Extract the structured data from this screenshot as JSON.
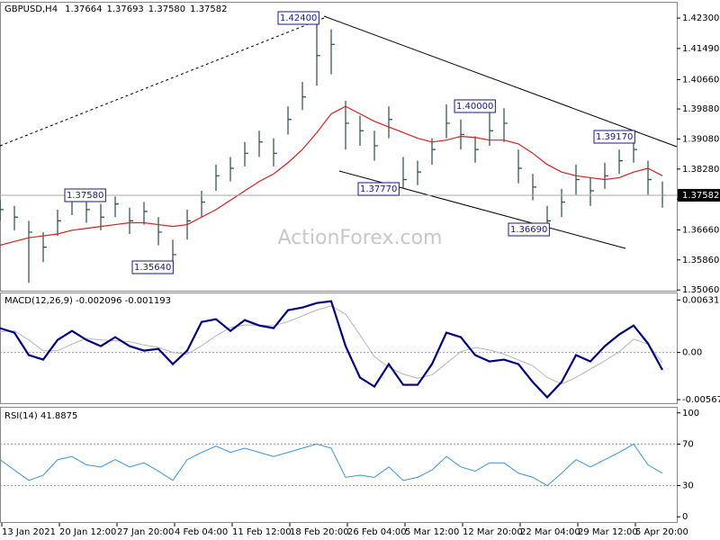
{
  "header": {
    "info": [
      "GBPUSD,H4",
      "1.37664",
      "1.37693",
      "1.37580",
      "1.37582"
    ],
    "watermark": "ActionForex.com"
  },
  "annotations": [
    "1.42400",
    "1.37580",
    "1.35640",
    "1.37770",
    "1.40000",
    "1.36690",
    "1.39170"
  ],
  "chart_data": [
    {
      "type": "hlc",
      "last_price": 1.37582,
      "color": "#2f4a4a",
      "ma_color": "#d42020",
      "x": [
        0,
        8,
        16,
        24,
        32,
        40,
        48,
        56,
        64,
        72,
        80,
        88,
        96,
        104,
        112,
        120,
        128,
        136,
        144,
        152,
        160,
        168,
        176,
        184,
        192,
        200,
        208,
        216,
        224,
        232,
        240,
        248,
        256,
        264,
        272,
        280,
        288,
        296,
        304,
        312,
        320,
        328,
        336,
        344,
        352,
        360,
        368
      ],
      "xlim": [
        0,
        376
      ],
      "high": [
        1.3745,
        1.373,
        1.369,
        1.366,
        1.372,
        1.3758,
        1.375,
        1.3735,
        1.3755,
        1.3725,
        1.374,
        1.37,
        1.364,
        1.372,
        1.377,
        1.384,
        1.386,
        1.39,
        1.393,
        1.391,
        1.3995,
        1.406,
        1.424,
        1.42,
        1.401,
        1.397,
        1.393,
        1.3995,
        1.386,
        1.385,
        1.391,
        1.4,
        1.396,
        1.3915,
        1.398,
        1.399,
        1.388,
        1.3815,
        1.373,
        1.3775,
        1.384,
        1.3805,
        1.3845,
        1.388,
        1.3917,
        1.385,
        1.3795
      ],
      "low": [
        1.369,
        1.3665,
        1.3525,
        1.358,
        1.365,
        1.3705,
        1.3685,
        1.3665,
        1.37,
        1.3655,
        1.368,
        1.3625,
        1.3564,
        1.364,
        1.37,
        1.377,
        1.3795,
        1.3835,
        1.386,
        1.3835,
        1.392,
        1.3985,
        1.405,
        1.408,
        1.388,
        1.389,
        1.385,
        1.391,
        1.3777,
        1.3785,
        1.384,
        1.391,
        1.388,
        1.3845,
        1.389,
        1.39,
        1.379,
        1.3745,
        1.3669,
        1.37,
        1.376,
        1.373,
        1.3775,
        1.3815,
        1.3845,
        1.376,
        1.3725
      ],
      "close": [
        1.372,
        1.37,
        1.366,
        1.362,
        1.369,
        1.3745,
        1.372,
        1.37,
        1.3735,
        1.369,
        1.3715,
        1.366,
        1.36,
        1.369,
        1.374,
        1.381,
        1.383,
        1.387,
        1.39,
        1.387,
        1.396,
        1.402,
        1.413,
        1.416,
        1.395,
        1.393,
        1.389,
        1.396,
        1.38,
        1.382,
        1.388,
        1.395,
        1.392,
        1.388,
        1.393,
        1.395,
        1.383,
        1.378,
        1.369,
        1.374,
        1.38,
        1.377,
        1.381,
        1.385,
        1.388,
        1.38,
        1.3758
      ],
      "ma_values": [
        1.3625,
        1.3635,
        1.3645,
        1.365,
        1.3655,
        1.3665,
        1.367,
        1.3675,
        1.368,
        1.3685,
        1.3685,
        1.368,
        1.3675,
        1.368,
        1.37,
        1.372,
        1.3745,
        1.377,
        1.3795,
        1.3815,
        1.3845,
        1.388,
        1.3925,
        1.3975,
        1.3995,
        1.3975,
        1.3955,
        1.394,
        1.3925,
        1.391,
        1.39,
        1.3905,
        1.3915,
        1.3912,
        1.3905,
        1.3905,
        1.3895,
        1.387,
        1.384,
        1.382,
        1.381,
        1.3805,
        1.38,
        1.3805,
        1.382,
        1.383,
        1.381
      ],
      "ylim": [
        1.3504,
        1.4271
      ],
      "yticks": [
        {
          "value": 1.423,
          "label": "1.42300"
        },
        {
          "value": 1.4149,
          "label": "1.41490"
        },
        {
          "value": 1.4066,
          "label": "1.40660"
        },
        {
          "value": 1.3988,
          "label": "1.39880"
        },
        {
          "value": 1.3908,
          "label": "1.39080"
        },
        {
          "value": 1.3828,
          "label": "1.38280"
        },
        {
          "value": 1.3748,
          "label": "1.37480"
        },
        {
          "value": 1.3666,
          "label": "1.36660"
        },
        {
          "value": 1.3586,
          "label": "1.35860"
        },
        {
          "value": 1.3506,
          "label": "1.35060"
        }
      ]
    },
    {
      "type": "macd",
      "title": "MACD(12,26,9) -0.002096 -0.001193",
      "x": [
        0,
        8,
        16,
        24,
        32,
        40,
        48,
        56,
        64,
        72,
        80,
        88,
        96,
        104,
        112,
        120,
        128,
        136,
        144,
        152,
        160,
        168,
        176,
        184,
        192,
        200,
        208,
        216,
        224,
        232,
        240,
        248,
        256,
        264,
        272,
        280,
        288,
        296,
        304,
        312,
        320,
        328,
        336,
        344,
        352,
        360,
        368
      ],
      "xlim": [
        0,
        376
      ],
      "series": [
        {
          "color": "#000080",
          "values": [
            0.00292,
            0.00238,
            -0.00032,
            -0.00086,
            0.00151,
            0.00259,
            0.00151,
            0.00076,
            0.00184,
            0.00076,
            0.00022,
            0.00043,
            -0.0014,
            0.00022,
            0.00367,
            0.004,
            0.00259,
            0.00389,
            0.00324,
            0.00292,
            0.00508,
            0.0054,
            0.00594,
            0.00616,
            0.00076,
            -0.00302,
            -0.0041,
            -0.0014,
            -0.00389,
            -0.00389,
            -0.0014,
            0.00238,
            0.00184,
            -0.00032,
            -0.00108,
            -0.00086,
            -0.0014,
            -0.00356,
            -0.0054,
            -0.00356,
            -0.00032,
            -0.00108,
            0.00076,
            0.00216,
            0.00324,
            0.00108,
            -0.0021
          ]
        },
        {
          "color": "#b4b4b4",
          "values": [
            0.0025,
            0.0026,
            0.0015,
            0.0002,
            0.0002,
            0.001,
            0.0017,
            0.0015,
            0.0014,
            0.0013,
            0.0009,
            0.0006,
            0,
            -0.0002,
            0.0008,
            0.002,
            0.003,
            0.0033,
            0.0033,
            0.0032,
            0.0037,
            0.0044,
            0.0051,
            0.0056,
            0.0046,
            0.0021,
            -0.0005,
            -0.0018,
            -0.0026,
            -0.0031,
            -0.0027,
            -0.0013,
            0.0001,
            0.0006,
            0.0003,
            -0.0002,
            -0.0009,
            -0.0016,
            -0.003,
            -0.0038,
            -0.003,
            -0.002,
            -0.001,
            0.0001,
            0.0016,
            0.001,
            -0.0012
          ]
        }
      ],
      "ylim": [
        -0.0061,
        0.0071
      ],
      "yticks": [
        0.00631,
        {
          "value": 0,
          "label": "0.00"
        },
        -0.00567
      ],
      "levels": [
        0
      ]
    },
    {
      "type": "rsi",
      "title": "RSI(14) 41.8875",
      "x": [
        0,
        8,
        16,
        24,
        32,
        40,
        48,
        56,
        64,
        72,
        80,
        88,
        96,
        104,
        112,
        120,
        128,
        136,
        144,
        152,
        160,
        168,
        176,
        184,
        192,
        200,
        208,
        216,
        224,
        232,
        240,
        248,
        256,
        264,
        272,
        280,
        288,
        296,
        304,
        312,
        320,
        328,
        336,
        344,
        352,
        360,
        368
      ],
      "xlim": [
        0,
        376
      ],
      "xticks": [
        {
          "value": 1,
          "label": "13 Jan 2021"
        },
        {
          "value": 33,
          "label": "20 Jan 12:00"
        },
        {
          "value": 65,
          "label": "27 Jan 20:00"
        },
        {
          "value": 97,
          "label": "4 Feb 04:00"
        },
        {
          "value": 129,
          "label": "11 Feb 12:00"
        },
        {
          "value": 161,
          "label": "18 Feb 20:00"
        },
        {
          "value": 193,
          "label": "26 Feb 04:00"
        },
        {
          "value": 225,
          "label": "5 Mar 12:00"
        },
        {
          "value": 257,
          "label": "12 Mar 20:00"
        },
        {
          "value": 289,
          "label": "22 Mar 04:00"
        },
        {
          "value": 321,
          "label": "29 Mar 12:00"
        },
        {
          "value": 353,
          "label": "5 Apr 20:00"
        }
      ],
      "series": [
        {
          "color": "#3a96d2",
          "values": [
            55,
            45,
            35,
            40,
            55,
            58,
            50,
            48,
            55,
            48,
            52,
            44,
            35,
            55,
            62,
            68,
            62,
            66,
            62,
            58,
            62,
            66,
            70,
            66,
            38,
            40,
            38,
            48,
            35,
            38,
            45,
            58,
            48,
            44,
            52,
            52,
            42,
            38,
            30,
            42,
            55,
            48,
            55,
            62,
            70,
            50,
            41.89
          ]
        }
      ],
      "ylim": [
        -5,
        105
      ],
      "yticks": [
        100,
        70,
        30,
        0
      ],
      "levels": [
        70,
        30
      ]
    }
  ]
}
